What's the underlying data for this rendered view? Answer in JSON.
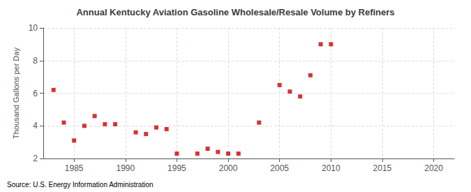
{
  "chart_data": {
    "type": "scatter",
    "title": "Annual Kentucky Aviation Gasoline Wholesale/Resale Volume by Refiners",
    "ylabel": "Thousand Gallons per Day",
    "annotation": "Source: U.S. Energy Information Administration",
    "x": [
      1983,
      1984,
      1985,
      1986,
      1987,
      1988,
      1989,
      1991,
      1992,
      1993,
      1994,
      1995,
      1997,
      1998,
      1999,
      2000,
      2001,
      2003,
      2005,
      2006,
      2007,
      2008,
      2009,
      2010
    ],
    "values": [
      6.2,
      4.2,
      3.1,
      4.0,
      4.6,
      4.1,
      4.1,
      3.6,
      3.5,
      3.9,
      3.8,
      2.3,
      2.3,
      2.6,
      2.4,
      2.3,
      2.3,
      4.2,
      6.5,
      6.1,
      5.8,
      7.1,
      9.0,
      9.0
    ],
    "color": "#cc0000",
    "marker": "square",
    "xlim": [
      1982,
      2022
    ],
    "ylim": [
      2,
      10
    ],
    "xticks": [
      1985,
      1990,
      1995,
      2000,
      2005,
      2010,
      2015,
      2020
    ],
    "yticks": [
      2,
      4,
      6,
      8,
      10
    ],
    "grid": true
  }
}
